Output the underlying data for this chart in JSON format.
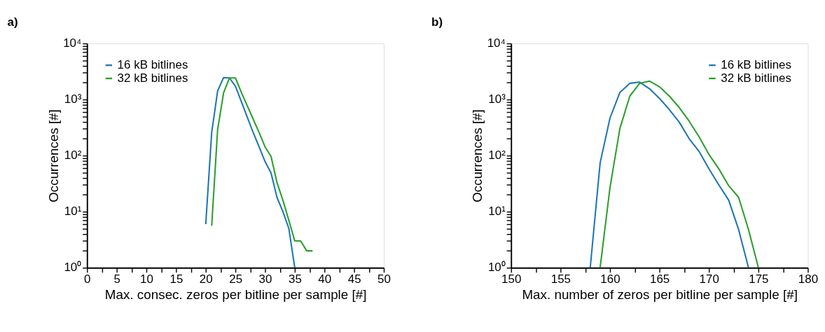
{
  "chart_data": [
    {
      "type": "line",
      "title": "a)",
      "xlabel": "Max. consec. zeros per bitline per sample [#]",
      "ylabel": "Occurrences [#]",
      "log": "y",
      "legend": "top left",
      "grid": false,
      "marker": "none",
      "line_style": "solid",
      "xlim": [
        0,
        50
      ],
      "ylim": [
        1,
        10000
      ],
      "xticks": [
        0,
        {
          "value": 2.5,
          "label": null
        },
        5,
        {
          "value": 7.5,
          "label": null
        },
        10,
        {
          "value": 12.5,
          "label": null
        },
        15,
        {
          "value": 17.5,
          "label": null
        },
        20,
        {
          "value": 22.5,
          "label": null
        },
        25,
        {
          "value": 27.5,
          "label": null
        },
        30,
        {
          "value": 32.5,
          "label": null
        },
        35,
        {
          "value": 37.5,
          "label": null
        },
        40,
        {
          "value": 42.5,
          "label": null
        },
        45,
        {
          "value": 47.5,
          "label": null
        },
        50
      ],
      "yticks": [
        {
          "value": 1,
          "label": "10⁰"
        },
        {
          "value": 2,
          "label": null
        },
        {
          "value": 3,
          "label": null
        },
        {
          "value": 4,
          "label": null
        },
        {
          "value": 5,
          "label": null
        },
        {
          "value": 6,
          "label": null
        },
        {
          "value": 7,
          "label": null
        },
        {
          "value": 8,
          "label": null
        },
        {
          "value": 9,
          "label": null
        },
        {
          "value": 10,
          "label": "10¹"
        },
        {
          "value": 20,
          "label": null
        },
        {
          "value": 30,
          "label": null
        },
        {
          "value": 40,
          "label": null
        },
        {
          "value": 50,
          "label": null
        },
        {
          "value": 60,
          "label": null
        },
        {
          "value": 70,
          "label": null
        },
        {
          "value": 80,
          "label": null
        },
        {
          "value": 90,
          "label": null
        },
        {
          "value": 100,
          "label": "10²"
        },
        {
          "value": 200,
          "label": null
        },
        {
          "value": 300,
          "label": null
        },
        {
          "value": 400,
          "label": null
        },
        {
          "value": 500,
          "label": null
        },
        {
          "value": 600,
          "label": null
        },
        {
          "value": 700,
          "label": null
        },
        {
          "value": 800,
          "label": null
        },
        {
          "value": 900,
          "label": null
        },
        {
          "value": 1000,
          "label": "10³"
        },
        {
          "value": 2000,
          "label": null
        },
        {
          "value": 3000,
          "label": null
        },
        {
          "value": 4000,
          "label": null
        },
        {
          "value": 5000,
          "label": null
        },
        {
          "value": 6000,
          "label": null
        },
        {
          "value": 7000,
          "label": null
        },
        {
          "value": 8000,
          "label": null
        },
        {
          "value": 9000,
          "label": null
        },
        {
          "value": 10000,
          "label": "10⁴"
        }
      ],
      "series": [
        {
          "name": "16 kB bitlines",
          "color": "#1f77b4",
          "x": [
            20,
            21,
            22,
            23,
            24,
            25,
            26,
            27,
            28,
            29,
            30,
            31,
            32,
            33,
            34,
            35
          ],
          "values": [
            6,
            257,
            1420,
            2460,
            2430,
            1730,
            915,
            484,
            257,
            142,
            78,
            49,
            18,
            10,
            5,
            1
          ]
        },
        {
          "name": "32 kB bitlines",
          "color": "#2ca02c",
          "x": [
            21,
            22,
            23,
            24,
            25,
            26,
            27,
            28,
            29,
            30,
            31,
            32,
            33,
            34,
            35,
            36,
            37,
            38
          ],
          "values": [
            5.6,
            290,
            1310,
            2430,
            2430,
            1340,
            770,
            445,
            257,
            142,
            97,
            33,
            16,
            7,
            3,
            3,
            2,
            2
          ]
        }
      ]
    },
    {
      "type": "line",
      "title": "b)",
      "xlabel": "Max. number of zeros per bitline per sample [#]",
      "ylabel": "Occurrences [#]",
      "log": "y",
      "legend": "top right",
      "grid": false,
      "marker": "none",
      "line_style": "solid",
      "xlim": [
        150,
        180
      ],
      "ylim": [
        1,
        10000
      ],
      "xticks": [
        150,
        {
          "value": 152.5,
          "label": null
        },
        155,
        {
          "value": 157.5,
          "label": null
        },
        160,
        {
          "value": 162.5,
          "label": null
        },
        165,
        {
          "value": 167.5,
          "label": null
        },
        170,
        {
          "value": 172.5,
          "label": null
        },
        175,
        {
          "value": 177.5,
          "label": null
        },
        180
      ],
      "yticks": [
        {
          "value": 1,
          "label": "10⁰"
        },
        {
          "value": 2,
          "label": null
        },
        {
          "value": 3,
          "label": null
        },
        {
          "value": 4,
          "label": null
        },
        {
          "value": 5,
          "label": null
        },
        {
          "value": 6,
          "label": null
        },
        {
          "value": 7,
          "label": null
        },
        {
          "value": 8,
          "label": null
        },
        {
          "value": 9,
          "label": null
        },
        {
          "value": 10,
          "label": "10¹"
        },
        {
          "value": 20,
          "label": null
        },
        {
          "value": 30,
          "label": null
        },
        {
          "value": 40,
          "label": null
        },
        {
          "value": 50,
          "label": null
        },
        {
          "value": 60,
          "label": null
        },
        {
          "value": 70,
          "label": null
        },
        {
          "value": 80,
          "label": null
        },
        {
          "value": 90,
          "label": null
        },
        {
          "value": 100,
          "label": "10²"
        },
        {
          "value": 200,
          "label": null
        },
        {
          "value": 300,
          "label": null
        },
        {
          "value": 400,
          "label": null
        },
        {
          "value": 500,
          "label": null
        },
        {
          "value": 600,
          "label": null
        },
        {
          "value": 700,
          "label": null
        },
        {
          "value": 800,
          "label": null
        },
        {
          "value": 900,
          "label": null
        },
        {
          "value": 1000,
          "label": "10³"
        },
        {
          "value": 2000,
          "label": null
        },
        {
          "value": 3000,
          "label": null
        },
        {
          "value": 4000,
          "label": null
        },
        {
          "value": 5000,
          "label": null
        },
        {
          "value": 6000,
          "label": null
        },
        {
          "value": 7000,
          "label": null
        },
        {
          "value": 8000,
          "label": null
        },
        {
          "value": 9000,
          "label": null
        },
        {
          "value": 10000,
          "label": "10⁴"
        }
      ],
      "series": [
        {
          "name": "16 kB bitlines",
          "color": "#1f77b4",
          "x": [
            158,
            159,
            160,
            161,
            162,
            163,
            164,
            165,
            166,
            167,
            168,
            169,
            170,
            171,
            172,
            173,
            174
          ],
          "values": [
            1,
            74,
            468,
            1340,
            1950,
            2040,
            1550,
            1050,
            660,
            395,
            200,
            119,
            58,
            30,
            16,
            4.8,
            1
          ]
        },
        {
          "name": "32 kB bitlines",
          "color": "#2ca02c",
          "x": [
            159,
            160,
            161,
            162,
            163,
            164,
            165,
            166,
            167,
            168,
            169,
            170,
            171,
            172,
            173,
            174,
            175
          ],
          "values": [
            1,
            27,
            305,
            1150,
            1950,
            2130,
            1690,
            1150,
            720,
            412,
            217,
            105,
            58,
            29,
            18,
            4.8,
            1
          ]
        }
      ]
    }
  ]
}
